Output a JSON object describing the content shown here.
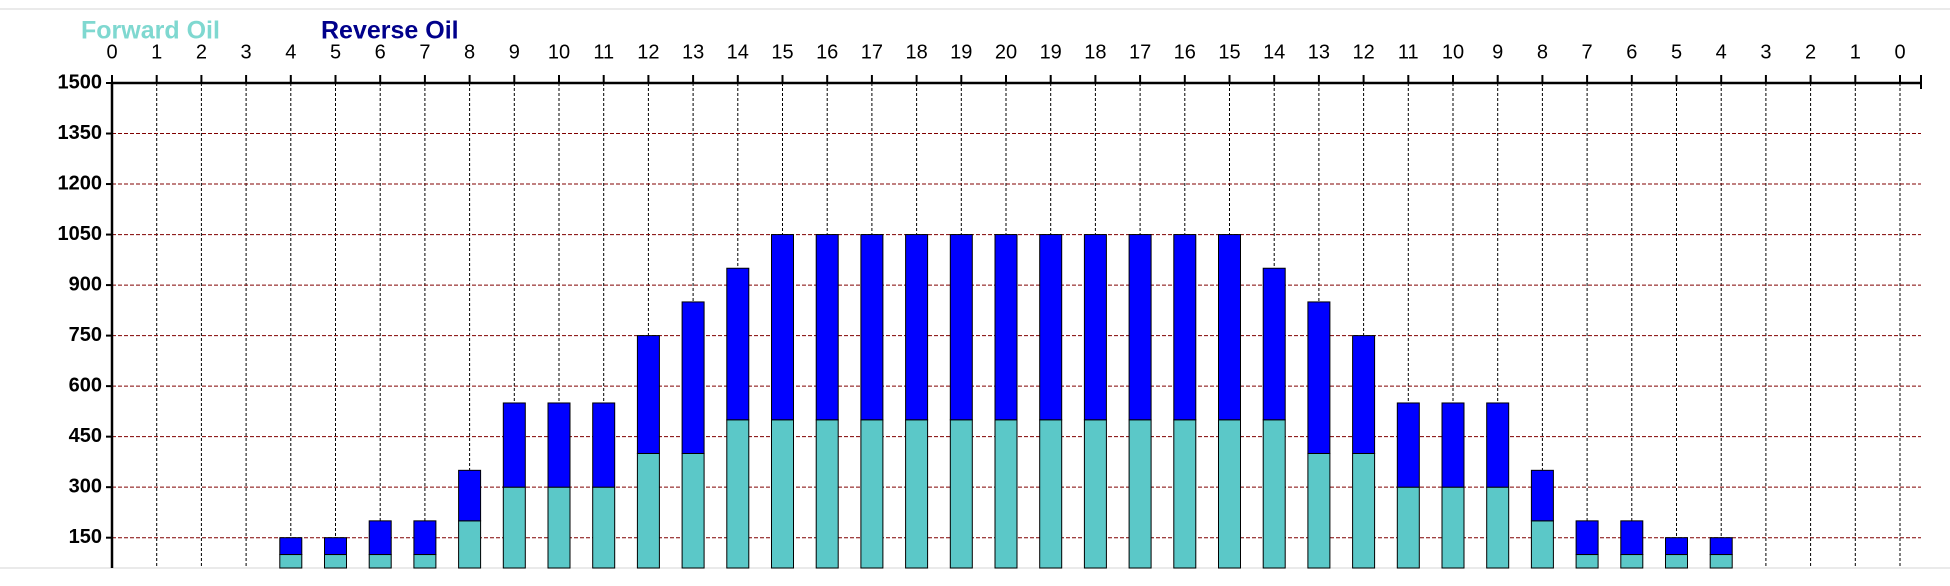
{
  "chart_data": {
    "type": "stacked-bar",
    "categories": [
      0,
      1,
      2,
      3,
      4,
      5,
      6,
      7,
      8,
      9,
      10,
      11,
      12,
      13,
      14,
      15,
      16,
      17,
      18,
      19,
      20,
      19,
      18,
      17,
      16,
      15,
      14,
      13,
      12,
      11,
      10,
      9,
      8,
      7,
      6,
      5,
      4,
      3,
      2,
      1,
      0
    ],
    "series": [
      {
        "name": "Forward Oil",
        "color": "#5bc8c8",
        "legend_color": "#7fd8d0",
        "values": [
          null,
          null,
          null,
          null,
          100,
          100,
          100,
          100,
          200,
          300,
          300,
          300,
          400,
          400,
          500,
          500,
          500,
          500,
          500,
          500,
          500,
          500,
          500,
          500,
          500,
          500,
          500,
          400,
          400,
          300,
          300,
          300,
          200,
          100,
          100,
          100,
          100,
          null,
          null,
          null,
          null
        ]
      },
      {
        "name": "Reverse Oil",
        "color": "#0000ff",
        "legend_color": "#00008b",
        "values": [
          null,
          null,
          null,
          null,
          50,
          50,
          100,
          100,
          150,
          250,
          250,
          250,
          350,
          450,
          450,
          550,
          550,
          550,
          550,
          550,
          550,
          550,
          550,
          550,
          550,
          550,
          450,
          450,
          350,
          250,
          250,
          250,
          150,
          100,
          100,
          50,
          50,
          null,
          null,
          null,
          null
        ]
      }
    ],
    "ylim": [
      60,
      1500
    ],
    "yticks": [
      1500,
      1350,
      1200,
      1050,
      900,
      750,
      600,
      450,
      300,
      150
    ],
    "grid": true
  }
}
